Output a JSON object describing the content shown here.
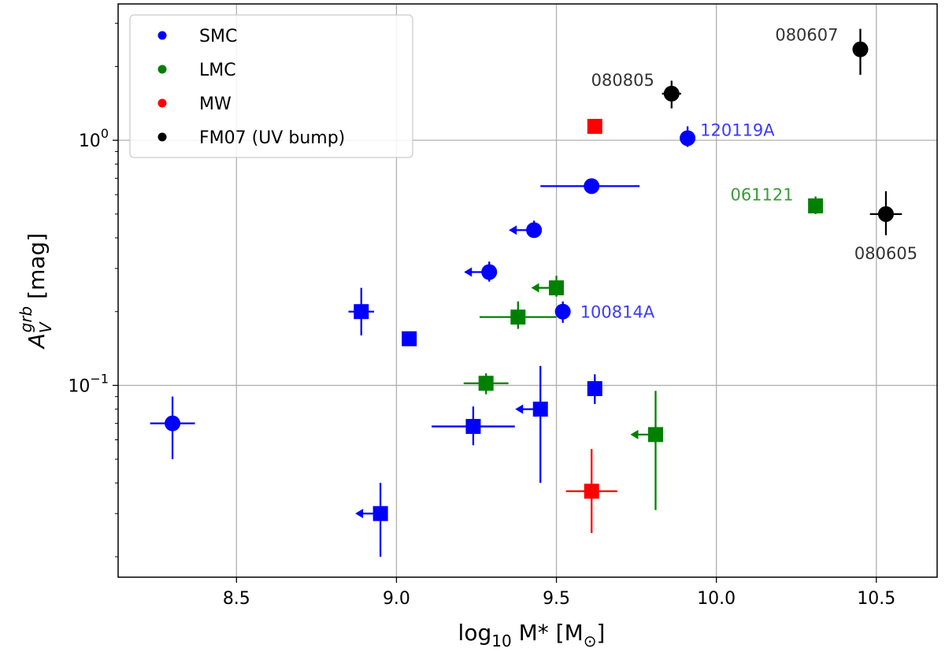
{
  "chart_data": {
    "type": "scatter",
    "xlabel_parts": [
      "log",
      "10",
      " M",
      "*",
      " [M",
      "⊙",
      "]"
    ],
    "ylabel_parts": [
      "A",
      "V",
      "grb",
      " [mag]"
    ],
    "xlim": [
      8.13,
      10.69
    ],
    "ylim_log": [
      0.0165,
      3.6
    ],
    "x_ticks": [
      {
        "value": 8.5,
        "label": "8.5"
      },
      {
        "value": 9.0,
        "label": "9.0"
      },
      {
        "value": 9.5,
        "label": "9.5"
      },
      {
        "value": 10.0,
        "label": "10.0"
      },
      {
        "value": 10.5,
        "label": "10.5"
      }
    ],
    "y_ticks": [
      {
        "value": 0.1,
        "base": "10",
        "exp": "−1"
      },
      {
        "value": 1.0,
        "base": "10",
        "exp": "0"
      }
    ],
    "grid": true,
    "legend": {
      "placement": "top-left",
      "entries": [
        {
          "label": "SMC",
          "color": "#0000ff"
        },
        {
          "label": "LMC",
          "color": "#008000"
        },
        {
          "label": "MW",
          "color": "#ff0000"
        },
        {
          "label": "FM07 (UV bump)",
          "color": "#000000"
        }
      ]
    },
    "series": [
      {
        "name": "SMC",
        "color": "#0000ff",
        "points": [
          {
            "x": 8.3,
            "y": 0.07,
            "xerr": [
              0.07,
              0.07
            ],
            "yerr": [
              0.02,
              0.02
            ],
            "marker": "circle"
          },
          {
            "x": 8.89,
            "y": 0.2,
            "xerr": [
              0.04,
              0.04
            ],
            "yerr": [
              0.04,
              0.05
            ],
            "marker": "square"
          },
          {
            "x": 8.95,
            "y": 0.03,
            "yerr": [
              0.01,
              0.01
            ],
            "marker": "square",
            "upper_limit_x": true
          },
          {
            "x": 9.04,
            "y": 0.155,
            "marker": "square"
          },
          {
            "x": 9.24,
            "y": 0.068,
            "xerr": [
              0.13,
              0.13
            ],
            "yerr": [
              0.011,
              0.014
            ],
            "marker": "square"
          },
          {
            "x": 9.29,
            "y": 0.29,
            "yerr": [
              0.025,
              0.03
            ],
            "marker": "circle",
            "upper_limit_x": true
          },
          {
            "x": 9.43,
            "y": 0.43,
            "yerr": [
              0.03,
              0.04
            ],
            "marker": "circle",
            "upper_limit_x": true
          },
          {
            "x": 9.45,
            "y": 0.08,
            "yerr": [
              0.04,
              0.04
            ],
            "marker": "square",
            "upper_limit_x": true
          },
          {
            "x": 9.52,
            "y": 0.2,
            "yerr": [
              0.02,
              0.02
            ],
            "marker": "circle",
            "label": "100814A"
          },
          {
            "x": 9.61,
            "y": 0.65,
            "xerr": [
              0.16,
              0.15
            ],
            "marker": "circle"
          },
          {
            "x": 9.62,
            "y": 0.097,
            "yerr": [
              0.013,
              0.014
            ],
            "marker": "square"
          },
          {
            "x": 9.91,
            "y": 1.02,
            "yerr": [
              0.08,
              0.12
            ],
            "marker": "circle",
            "label": "120119A"
          }
        ]
      },
      {
        "name": "LMC",
        "color": "#008000",
        "points": [
          {
            "x": 9.28,
            "y": 0.102,
            "xerr": [
              0.07,
              0.07
            ],
            "yerr": [
              0.01,
              0.01
            ],
            "marker": "square"
          },
          {
            "x": 9.38,
            "y": 0.19,
            "xerr": [
              0.12,
              0.12
            ],
            "yerr": [
              0.02,
              0.03
            ],
            "marker": "square"
          },
          {
            "x": 9.5,
            "y": 0.25,
            "yerr": [
              0.02,
              0.03
            ],
            "marker": "square",
            "upper_limit_x": true
          },
          {
            "x": 9.81,
            "y": 0.063,
            "yerr": [
              0.032,
              0.032
            ],
            "marker": "square",
            "upper_limit_x": true
          },
          {
            "x": 10.31,
            "y": 0.54,
            "yerr": [
              0.04,
              0.05
            ],
            "marker": "square",
            "label": "061121"
          }
        ]
      },
      {
        "name": "MW",
        "color": "#ff0000",
        "points": [
          {
            "x": 9.61,
            "y": 0.037,
            "xerr": [
              0.08,
              0.08
            ],
            "yerr": [
              0.012,
              0.018
            ],
            "marker": "square"
          },
          {
            "x": 9.62,
            "y": 1.14,
            "marker": "square"
          }
        ]
      },
      {
        "name": "FM07 (UV bump)",
        "color": "#000000",
        "points": [
          {
            "x": 9.86,
            "y": 1.55,
            "xerr": [
              0.03,
              0.03
            ],
            "yerr": [
              0.2,
              0.2
            ],
            "marker": "circle",
            "label": "080805"
          },
          {
            "x": 10.45,
            "y": 2.35,
            "xerr": [
              0.02,
              0.02
            ],
            "yerr": [
              0.5,
              0.5
            ],
            "marker": "circle",
            "label": "080607"
          },
          {
            "x": 10.53,
            "y": 0.5,
            "xerr": [
              0.05,
              0.05
            ],
            "yerr": [
              0.09,
              0.12
            ],
            "marker": "circle",
            "label": "080605"
          }
        ]
      }
    ]
  }
}
